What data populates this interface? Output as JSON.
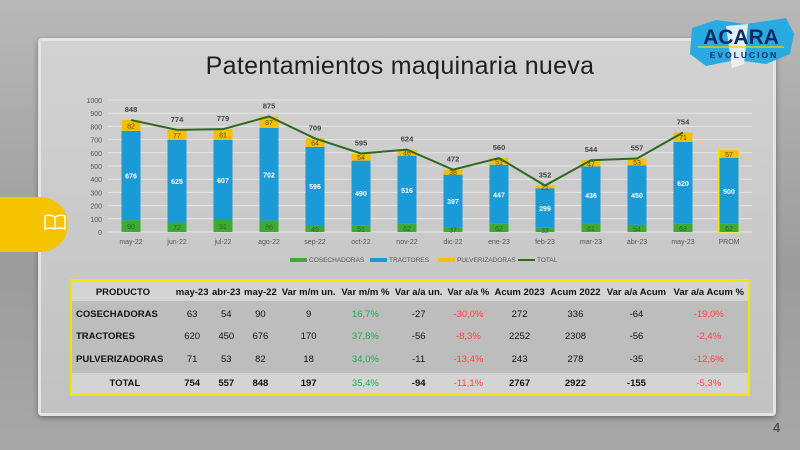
{
  "title": "Patentamientos maquinaria nueva",
  "page_number": "4",
  "logo": {
    "line1": "ACARA",
    "line2": "EVOLUCION"
  },
  "colors": {
    "cosechadoras": "#3daa35",
    "tractores": "#1a9ad6",
    "pulverizadoras": "#f6c000",
    "total": "#2d6a1f"
  },
  "chart_data": {
    "type": "bar",
    "stacked": true,
    "categories": [
      "may-22",
      "jun-22",
      "jul-22",
      "ago-22",
      "sep-22",
      "oct-22",
      "nov-22",
      "dic-22",
      "ene-23",
      "feb-23",
      "mar-23",
      "abr-23",
      "may-23",
      "PROM"
    ],
    "ylim": [
      0,
      1000
    ],
    "yticks": [
      0,
      100,
      200,
      300,
      400,
      500,
      600,
      700,
      800,
      900,
      1000
    ],
    "grid": true,
    "legend": "bottom",
    "series": [
      {
        "name": "COSECHADORAS",
        "values": [
          90,
          72,
          91,
          86,
          49,
          51,
          62,
          37,
          62,
          32,
          61,
          54,
          63,
          62
        ]
      },
      {
        "name": "TRACTORES",
        "values": [
          676,
          625,
          607,
          702,
          596,
          490,
          516,
          397,
          447,
          299,
          436,
          450,
          620,
          500
        ]
      },
      {
        "name": "PULVERIZADORAS",
        "values": [
          82,
          77,
          81,
          87,
          64,
          54,
          46,
          38,
          51,
          21,
          47,
          53,
          71,
          57
        ]
      },
      {
        "name": "TOTAL",
        "type": "line",
        "values": [
          848,
          774,
          779,
          875,
          709,
          595,
          624,
          472,
          560,
          352,
          544,
          557,
          754,
          null
        ]
      }
    ]
  },
  "table": {
    "headers": [
      "PRODUCTO",
      "may-23",
      "abr-23",
      "may-22",
      "Var m/m un.",
      "Var m/m %",
      "Var a/a un.",
      "Var a/a %",
      "Acum 2023",
      "Acum 2022",
      "Var a/a Acum",
      "Var a/a Acum %"
    ],
    "rows": [
      [
        "COSECHADORAS",
        "63",
        "54",
        "90",
        "9",
        "16,7%",
        "-27",
        "-30,0%",
        "272",
        "336",
        "-64",
        "-19,0%"
      ],
      [
        "TRACTORES",
        "620",
        "450",
        "676",
        "170",
        "37,8%",
        "-56",
        "-8,3%",
        "2252",
        "2308",
        "-56",
        "-2,4%"
      ],
      [
        "PULVERIZADORAS",
        "71",
        "53",
        "82",
        "18",
        "34,0%",
        "-11",
        "-13,4%",
        "243",
        "278",
        "-35",
        "-12,6%"
      ]
    ],
    "total": [
      "TOTAL",
      "754",
      "557",
      "848",
      "197",
      "35,4%",
      "-94",
      "-11,1%",
      "2767",
      "2922",
      "-155",
      "-5,3%"
    ]
  }
}
